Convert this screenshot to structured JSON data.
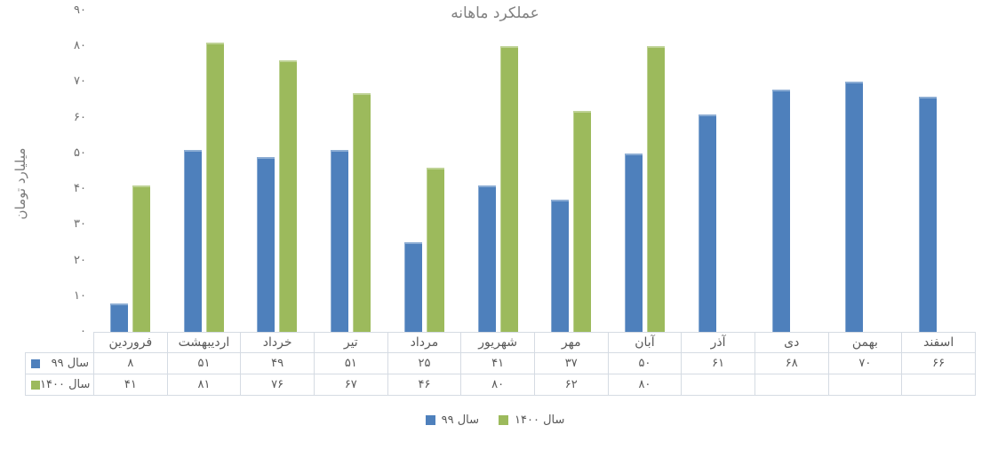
{
  "chart_data": {
    "type": "bar",
    "title": "عملکرد ماهانه",
    "xlabel": "",
    "ylabel": "میلیارد تومان",
    "categories": [
      "فروردین",
      "اردیبهشت",
      "خرداد",
      "تیر",
      "مرداد",
      "شهریور",
      "مهر",
      "آبان",
      "آذر",
      "دی",
      "بهمن",
      "اسفند"
    ],
    "series": [
      {
        "name": "سال ۹۹",
        "color": "#4e80bc",
        "values": [
          8,
          51,
          49,
          51,
          25,
          41,
          37,
          50,
          61,
          68,
          70,
          66
        ],
        "values_display": [
          "۸",
          "۵۱",
          "۴۹",
          "۵۱",
          "۲۵",
          "۴۱",
          "۳۷",
          "۵۰",
          "۶۱",
          "۶۸",
          "۷۰",
          "۶۶"
        ]
      },
      {
        "name": "سال ۱۴۰۰",
        "color": "#9cba5c",
        "values": [
          41,
          81,
          76,
          67,
          46,
          80,
          62,
          80,
          null,
          null,
          null,
          null
        ],
        "values_display": [
          "۴۱",
          "۸۱",
          "۷۶",
          "۶۷",
          "۴۶",
          "۸۰",
          "۶۲",
          "۸۰",
          "",
          "",
          "",
          ""
        ]
      }
    ],
    "ylim": [
      0,
      90
    ],
    "yticks": [
      0,
      10,
      20,
      30,
      40,
      50,
      60,
      70,
      80,
      90
    ],
    "yticks_display": [
      "۰",
      "۱۰",
      "۲۰",
      "۳۰",
      "۴۰",
      "۵۰",
      "۶۰",
      "۷۰",
      "۸۰",
      "۹۰"
    ],
    "grid": false,
    "legend_position": "bottom",
    "show_data_table": true
  }
}
